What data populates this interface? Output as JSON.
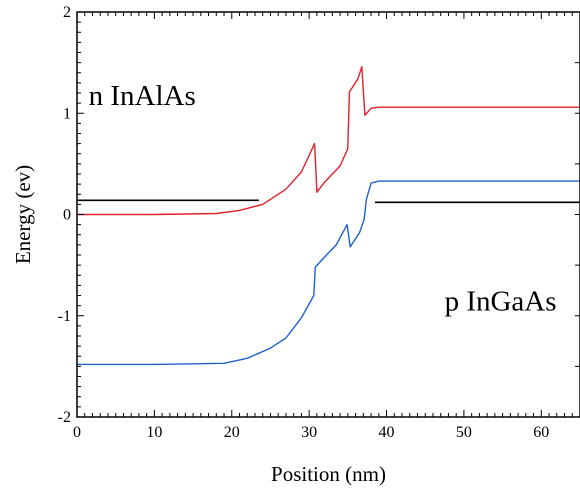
{
  "chart_data": {
    "type": "line",
    "title": "",
    "xlabel": "Position (nm)",
    "ylabel": "Energy (ev)",
    "xlim": [
      0,
      65
    ],
    "ylim": [
      -2,
      2
    ],
    "xticks": [
      0,
      10,
      20,
      30,
      40,
      50,
      60
    ],
    "yticks": [
      -2,
      -1,
      0,
      1,
      2
    ],
    "grid": false,
    "series": [
      {
        "color": "#e0202a",
        "points": [
          [
            0,
            0
          ],
          [
            10,
            0
          ],
          [
            18,
            0.01
          ],
          [
            21,
            0.04
          ],
          [
            24,
            0.1
          ],
          [
            27,
            0.25
          ],
          [
            29,
            0.42
          ],
          [
            30.7,
            0.7
          ],
          [
            31,
            0.22
          ],
          [
            32,
            0.32
          ],
          [
            34,
            0.48
          ],
          [
            35,
            0.65
          ],
          [
            35.2,
            1.21
          ],
          [
            36.3,
            1.34
          ],
          [
            36.8,
            1.46
          ],
          [
            37.2,
            0.98
          ],
          [
            38,
            1.05
          ],
          [
            39,
            1.06
          ],
          [
            65,
            1.06
          ]
        ]
      },
      {
        "color": "#2060d0",
        "points": [
          [
            0,
            -1.48
          ],
          [
            10,
            -1.48
          ],
          [
            19,
            -1.47
          ],
          [
            22,
            -1.42
          ],
          [
            25,
            -1.32
          ],
          [
            27,
            -1.22
          ],
          [
            29,
            -1.02
          ],
          [
            30.6,
            -0.8
          ],
          [
            30.8,
            -0.52
          ],
          [
            32,
            -0.42
          ],
          [
            33.5,
            -0.3
          ],
          [
            34.9,
            -0.1
          ],
          [
            35.3,
            -0.32
          ],
          [
            36.5,
            -0.18
          ],
          [
            37.1,
            -0.05
          ],
          [
            37.4,
            0.15
          ],
          [
            38,
            0.31
          ],
          [
            39,
            0.33
          ],
          [
            65,
            0.33
          ]
        ]
      },
      {
        "color": "#000000",
        "points": [
          [
            0,
            0.14
          ],
          [
            23.5,
            0.14
          ]
        ]
      },
      {
        "color": "#000000",
        "points": [
          [
            38.5,
            0.12
          ],
          [
            65,
            0.12
          ]
        ]
      }
    ],
    "annotations": [
      {
        "text": "n InAlAs",
        "x": 1.5,
        "y": 1.08
      },
      {
        "text": "p InGaAs",
        "x": 47.5,
        "y": -0.95
      }
    ]
  }
}
